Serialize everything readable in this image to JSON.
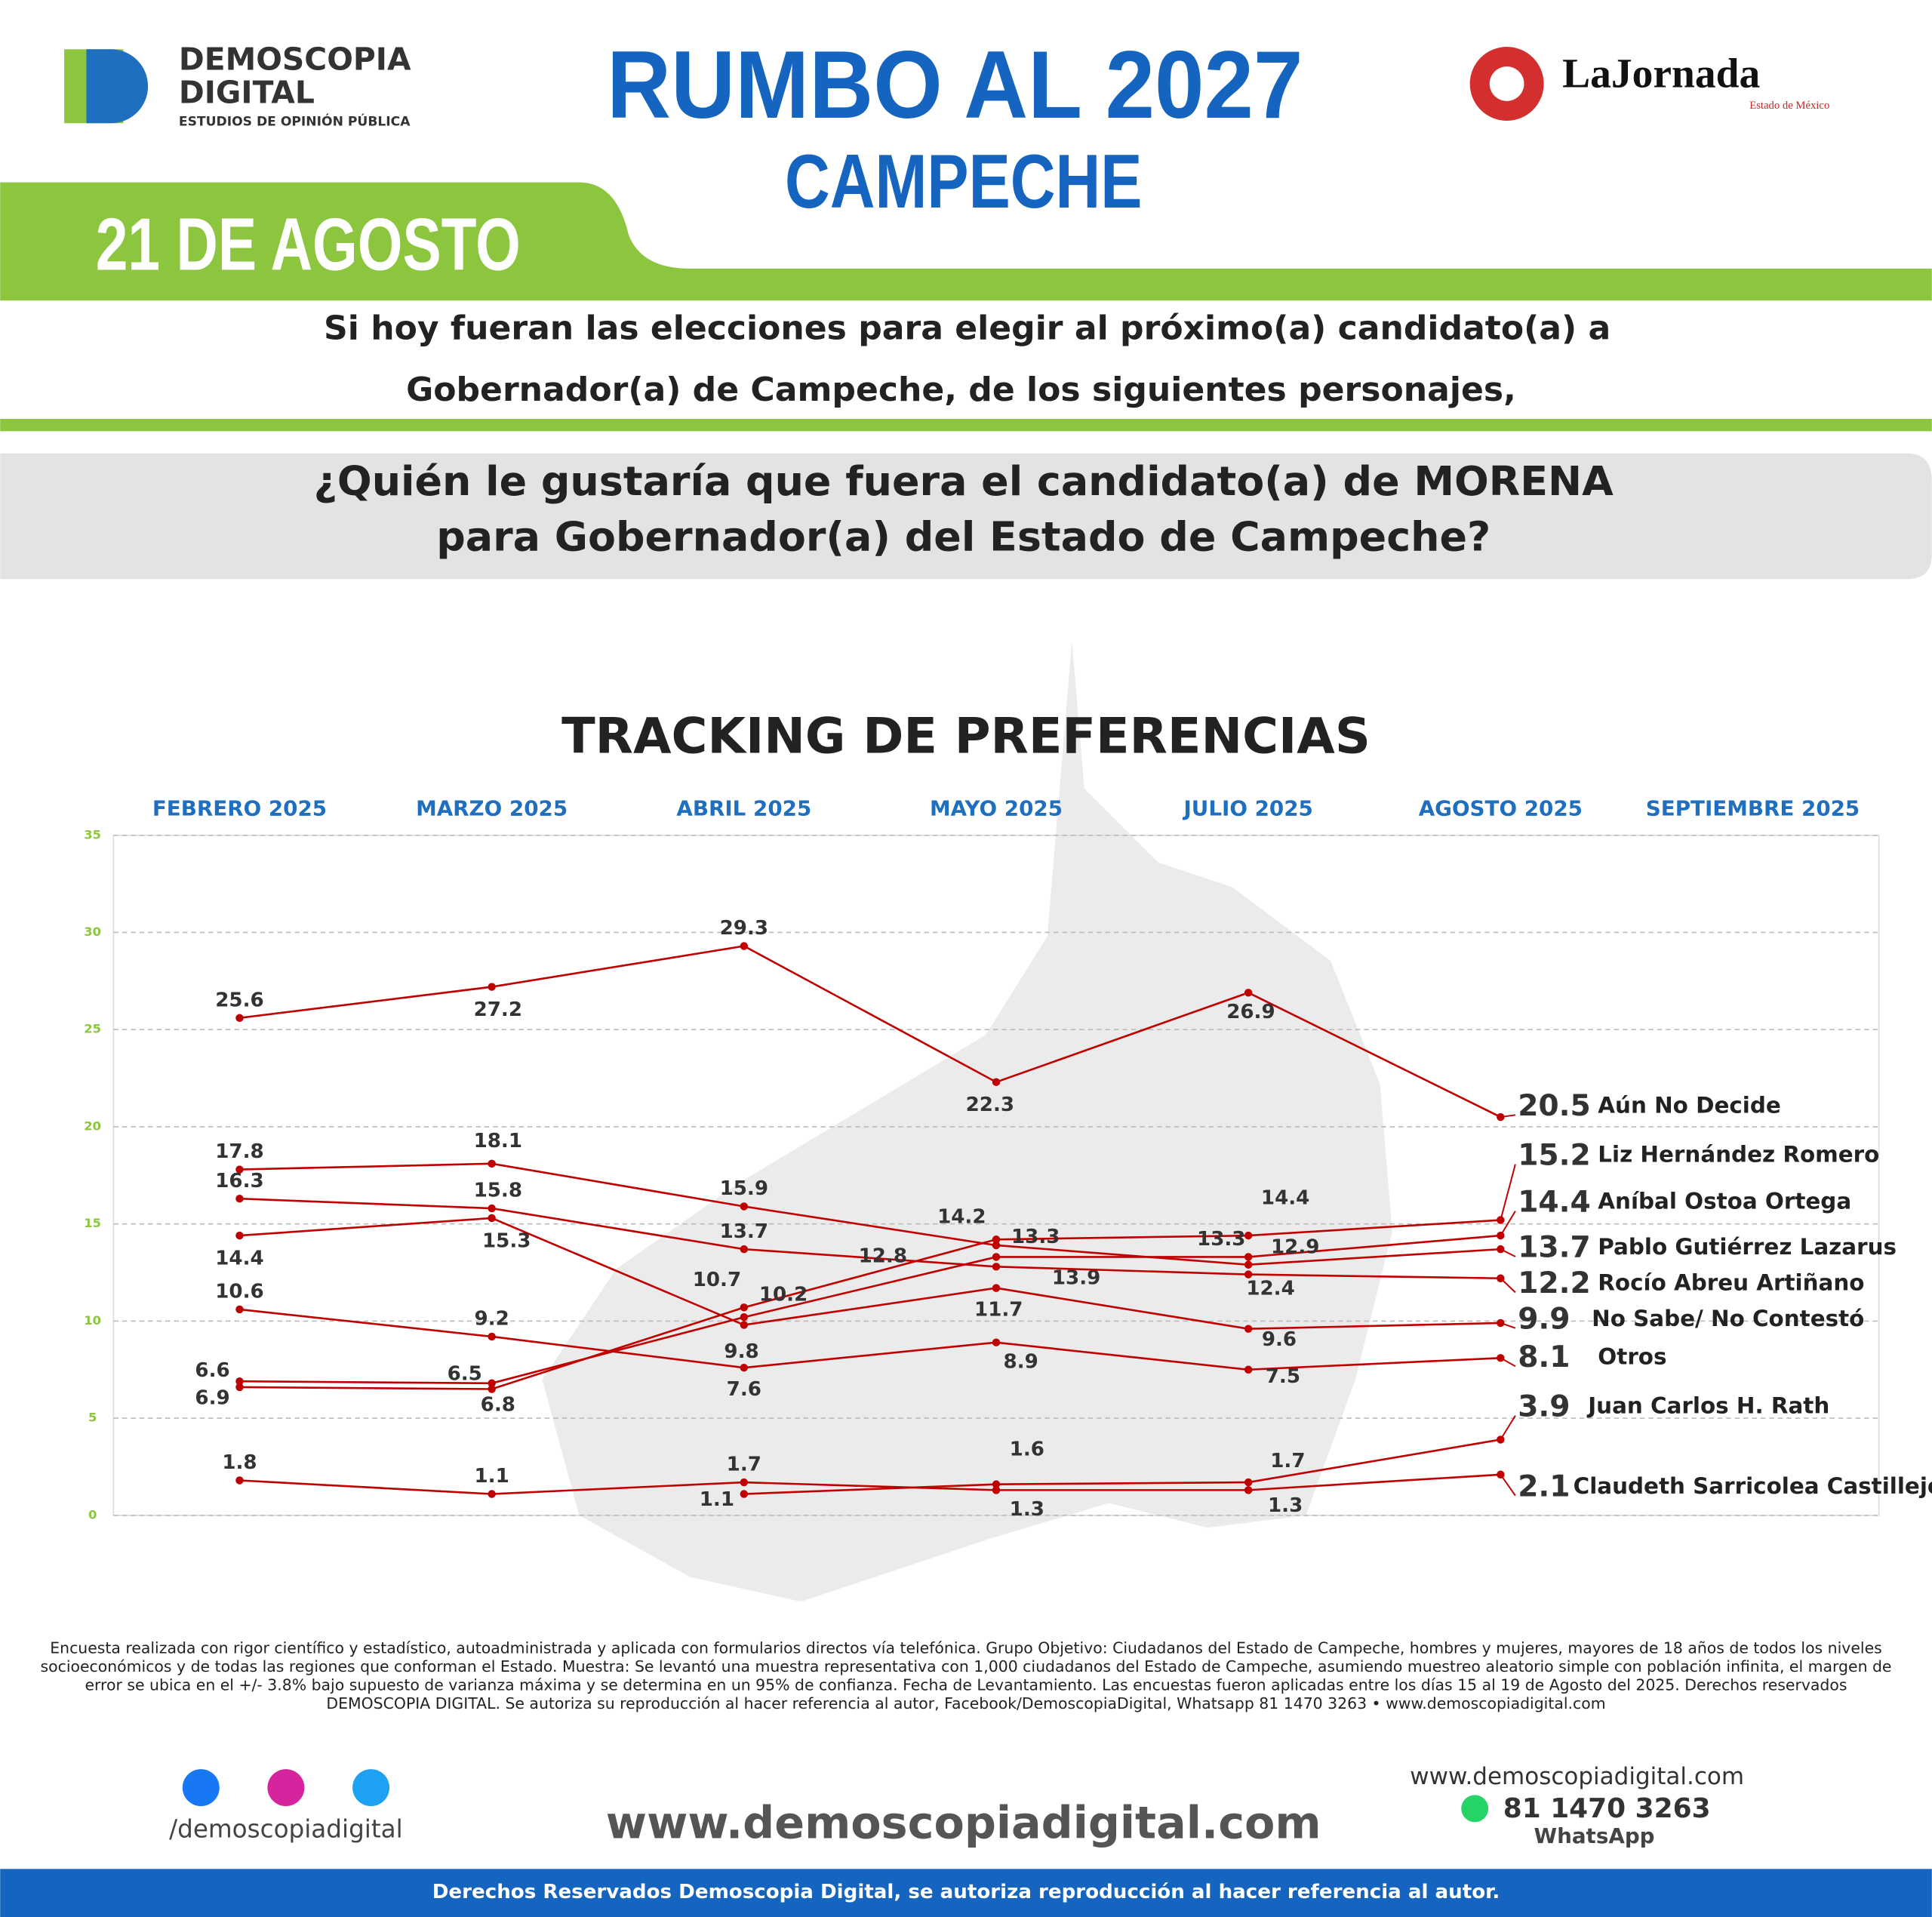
{
  "header": {
    "brand": "DEMOSCOPIA",
    "brand2": "DIGITAL",
    "brand_sub": "ESTUDIOS DE OPINIÓN PÚBLICA",
    "title": "RUMBO AL 2027",
    "subtitle": "CAMPECHE",
    "date": "21 DE AGOSTO",
    "partner": "LaJornada",
    "partner_sub": "Estado de México"
  },
  "question": {
    "intro_1": "Si hoy fueran las elecciones para elegir al próximo(a) candidato(a) a",
    "intro_2": "Gobernador(a) de Campeche, de los siguientes personajes,",
    "main_1": "¿Quién le gustaría que fuera el candidato(a) de MORENA",
    "main_2": "para Gobernador(a) del Estado de Campeche?"
  },
  "chart_data": {
    "type": "line",
    "title": "TRACKING DE PREFERENCIAS",
    "categories": [
      "FEBRERO 2025",
      "MARZO 2025",
      "ABRIL 2025",
      "MAYO 2025",
      "JULIO 2025",
      "AGOSTO 2025",
      "SEPTIEMBRE 2025"
    ],
    "ylim": [
      0,
      35
    ],
    "yticks": [
      0,
      5,
      10,
      15,
      20,
      25,
      30,
      35
    ],
    "grid": true,
    "series": [
      {
        "name": "Aún No Decide",
        "color": "#c00000",
        "values": [
          25.6,
          27.2,
          29.3,
          22.3,
          26.9,
          20.5,
          null
        ]
      },
      {
        "name": "Liz Hernández Romero",
        "color": "#c00000",
        "values": [
          6.6,
          6.5,
          10.7,
          14.2,
          14.4,
          15.2,
          null
        ]
      },
      {
        "name": "Aníbal Ostoa Ortega",
        "color": "#c00000",
        "values": [
          6.9,
          6.8,
          10.2,
          13.3,
          13.3,
          14.4,
          null
        ]
      },
      {
        "name": "Pablo Gutiérrez Lazarus",
        "color": "#c00000",
        "values": [
          17.8,
          18.1,
          15.9,
          13.9,
          12.9,
          13.7,
          null
        ]
      },
      {
        "name": "Rocío Abreu Artiñano",
        "color": "#c00000",
        "values": [
          16.3,
          15.8,
          13.7,
          12.8,
          12.4,
          12.2,
          null
        ]
      },
      {
        "name": "No Sabe/ No Contestó",
        "color": "#c00000",
        "values": [
          14.4,
          15.3,
          9.8,
          11.7,
          9.6,
          9.9,
          null
        ]
      },
      {
        "name": "Otros",
        "color": "#c00000",
        "values": [
          10.6,
          9.2,
          7.6,
          8.9,
          7.5,
          8.1,
          null
        ]
      },
      {
        "name": "Juan Carlos H. Rath",
        "color": "#c00000",
        "values": [
          null,
          null,
          1.1,
          1.6,
          1.7,
          3.9,
          null
        ]
      },
      {
        "name": "Claudeth Sarricolea Castillejo",
        "color": "#c00000",
        "values": [
          1.8,
          1.1,
          1.7,
          1.3,
          1.3,
          2.1,
          null
        ]
      }
    ]
  },
  "methodology": "Encuesta realizada con rigor científico y estadístico, autoadministrada y aplicada con formularios directos vía telefónica. Grupo Objetivo: Ciudadanos del Estado de Campeche, hombres y mujeres, mayores de 18 años de todos los niveles socioeconómicos y de todas las regiones que conforman el Estado. Muestra: Se levantó una muestra representativa con 1,000 ciudadanos del Estado de Campeche, asumiendo muestreo aleatorio simple con población infinita, el margen de error se ubica en el +/- 3.8% bajo supuesto de varianza máxima y se determina en un 95% de confianza. Fecha de Levantamiento. Las encuestas fueron aplicadas entre los días 15 al 19 de Agosto del 2025. Derechos reservados DEMOSCOPIA DIGITAL. Se autoriza su reproducción al hacer referencia al autor, Facebook/DemoscopiaDigital, Whatsapp 81 1470 3263 • www.demoscopiadigital.com",
  "contact": {
    "handle": "/demoscopiadigital",
    "website_big": "www.demoscopiadigital.com",
    "website": "www.demoscopiadigital.com",
    "phone": "81 1470 3263",
    "whatsapp": "WhatsApp"
  },
  "footer": "Derechos Reservados Demoscopia Digital, se autoriza reproducción al hacer referencia al autor."
}
